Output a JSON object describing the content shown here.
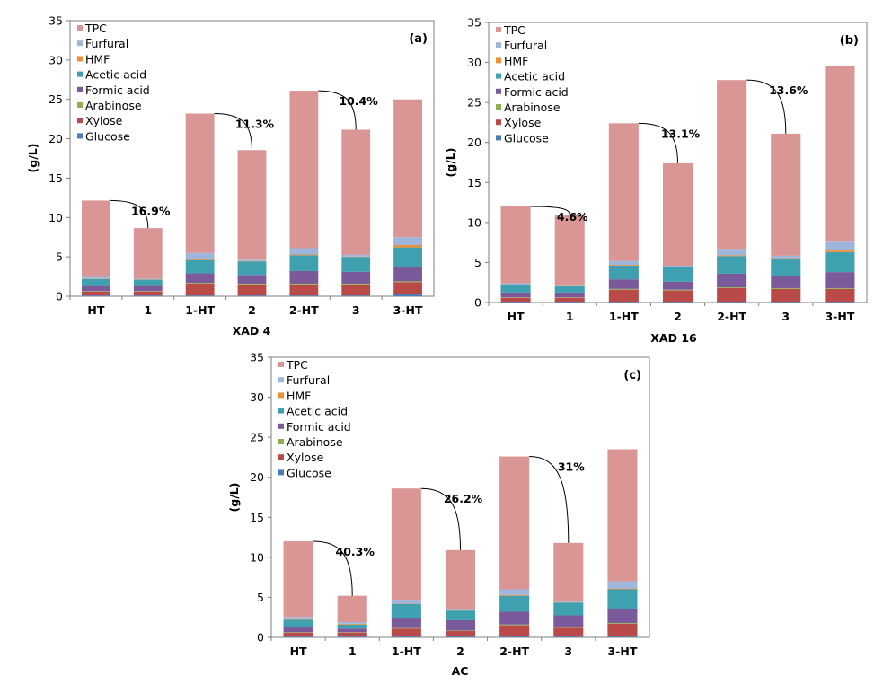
{
  "series_names": [
    "Glucose",
    "Xylose",
    "Arabinose",
    "Formic acid",
    "Acetic acid",
    "HMF",
    "Furfural",
    "TPC"
  ],
  "legend_order": [
    "TPC",
    "Furfural",
    "HMF",
    "Acetic acid",
    "Formic acid",
    "Arabinose",
    "Xylose",
    "Glucose"
  ],
  "colors": {
    "Glucose": "#4a7cb8",
    "Xylose": "#b94a48",
    "Arabinose": "#8fb04f",
    "Formic acid": "#7a5a9a",
    "Acetic acid": "#3fa0b0",
    "HMF": "#e8913a",
    "Furfural": "#9fb6dc",
    "TPC": "#d99694"
  },
  "chart_data": [
    {
      "type": "bar",
      "stacked": true,
      "panel_label": "(a)",
      "title": "",
      "xlabel": "XAD 4",
      "ylabel": "(g/L)",
      "ylim": [
        0,
        35
      ],
      "yticks": [
        0,
        5,
        10,
        15,
        20,
        25,
        30,
        35
      ],
      "categories": [
        "HT",
        "1",
        "1-HT",
        "2",
        "2-HT",
        "3",
        "3-HT"
      ],
      "series": [
        {
          "name": "Glucose",
          "values": [
            0.1,
            0.1,
            0.1,
            0.1,
            0.1,
            0.1,
            0.3
          ]
        },
        {
          "name": "Xylose",
          "values": [
            0.5,
            0.5,
            1.5,
            1.4,
            1.4,
            1.4,
            1.5
          ]
        },
        {
          "name": "Arabinose",
          "values": [
            0.05,
            0.05,
            0.1,
            0.1,
            0.1,
            0.1,
            0.1
          ]
        },
        {
          "name": "Formic acid",
          "values": [
            0.65,
            0.65,
            1.2,
            1.1,
            1.6,
            1.5,
            1.8
          ]
        },
        {
          "name": "Acetic acid",
          "values": [
            0.9,
            0.8,
            1.7,
            1.7,
            2.0,
            1.9,
            2.5
          ]
        },
        {
          "name": "HMF",
          "values": [
            0.05,
            0.05,
            0.1,
            0.05,
            0.1,
            0.05,
            0.3
          ]
        },
        {
          "name": "Furfural",
          "values": [
            0.2,
            0.1,
            0.8,
            0.2,
            0.8,
            0.2,
            1.0
          ]
        },
        {
          "name": "TPC",
          "values": [
            9.7,
            6.4,
            17.7,
            13.9,
            20.0,
            15.9,
            17.5
          ]
        }
      ],
      "totals": [
        12.15,
        8.65,
        23.2,
        18.55,
        26.1,
        21.15,
        25.0
      ],
      "annotations": [
        {
          "from": 0,
          "to": 1,
          "text": "16.9%"
        },
        {
          "from": 2,
          "to": 3,
          "text": "11.3%"
        },
        {
          "from": 4,
          "to": 5,
          "text": "10.4%"
        }
      ]
    },
    {
      "type": "bar",
      "stacked": true,
      "panel_label": "(b)",
      "title": "",
      "xlabel": "XAD 16",
      "ylabel": "(g/L)",
      "ylim": [
        0,
        35
      ],
      "yticks": [
        0,
        5,
        10,
        15,
        20,
        25,
        30,
        35
      ],
      "categories": [
        "HT",
        "1",
        "1-HT",
        "2",
        "2-HT",
        "3",
        "3-HT"
      ],
      "series": [
        {
          "name": "Glucose",
          "values": [
            0.1,
            0.1,
            0.1,
            0.1,
            0.1,
            0.1,
            0.1
          ]
        },
        {
          "name": "Xylose",
          "values": [
            0.5,
            0.5,
            1.5,
            1.4,
            1.7,
            1.6,
            1.6
          ]
        },
        {
          "name": "Arabinose",
          "values": [
            0.05,
            0.05,
            0.1,
            0.1,
            0.1,
            0.1,
            0.1
          ]
        },
        {
          "name": "Formic acid",
          "values": [
            0.6,
            0.6,
            1.2,
            1.0,
            1.7,
            1.5,
            2.0
          ]
        },
        {
          "name": "Acetic acid",
          "values": [
            0.9,
            0.8,
            1.7,
            1.8,
            2.2,
            2.2,
            2.5
          ]
        },
        {
          "name": "HMF",
          "values": [
            0.05,
            0.05,
            0.1,
            0.05,
            0.1,
            0.05,
            0.3
          ]
        },
        {
          "name": "Furfural",
          "values": [
            0.2,
            0.1,
            0.5,
            0.15,
            0.8,
            0.3,
            1.0
          ]
        },
        {
          "name": "TPC",
          "values": [
            9.6,
            8.8,
            17.2,
            12.8,
            21.1,
            15.25,
            22.0
          ]
        }
      ],
      "totals": [
        12.0,
        11.0,
        22.4,
        17.3,
        27.8,
        21.1,
        29.6
      ],
      "annotations": [
        {
          "from": 0,
          "to": 1,
          "text": "4.6%"
        },
        {
          "from": 2,
          "to": 3,
          "text": "13.1%"
        },
        {
          "from": 4,
          "to": 5,
          "text": "13.6%"
        }
      ]
    },
    {
      "type": "bar",
      "stacked": true,
      "panel_label": "(c)",
      "title": "",
      "xlabel": "AC",
      "ylabel": "(g/L)",
      "ylim": [
        0,
        35
      ],
      "yticks": [
        0,
        5,
        10,
        15,
        20,
        25,
        30,
        35
      ],
      "categories": [
        "HT",
        "1",
        "1-HT",
        "2",
        "2-HT",
        "3",
        "3-HT"
      ],
      "series": [
        {
          "name": "Glucose",
          "values": [
            0.1,
            0.1,
            0.1,
            0.1,
            0.1,
            0.1,
            0.1
          ]
        },
        {
          "name": "Xylose",
          "values": [
            0.5,
            0.5,
            1.0,
            0.7,
            1.4,
            1.1,
            1.6
          ]
        },
        {
          "name": "Arabinose",
          "values": [
            0.05,
            0.05,
            0.05,
            0.05,
            0.1,
            0.05,
            0.1
          ]
        },
        {
          "name": "Formic acid",
          "values": [
            0.65,
            0.45,
            1.2,
            1.3,
            1.6,
            1.5,
            1.7
          ]
        },
        {
          "name": "Acetic acid",
          "values": [
            0.9,
            0.5,
            1.8,
            1.2,
            2.0,
            1.6,
            2.5
          ]
        },
        {
          "name": "HMF",
          "values": [
            0.05,
            0.1,
            0.05,
            0.05,
            0.1,
            0.05,
            0.1
          ]
        },
        {
          "name": "Furfural",
          "values": [
            0.3,
            0.2,
            0.5,
            0.1,
            0.7,
            0.1,
            0.9
          ]
        },
        {
          "name": "TPC",
          "values": [
            9.45,
            3.3,
            13.9,
            7.4,
            16.6,
            7.3,
            16.5
          ]
        }
      ],
      "totals": [
        12.0,
        5.2,
        18.6,
        10.9,
        22.5,
        11.8,
        23.5
      ],
      "annotations": [
        {
          "from": 0,
          "to": 1,
          "text": "40.3%"
        },
        {
          "from": 2,
          "to": 3,
          "text": "26.2%"
        },
        {
          "from": 4,
          "to": 5,
          "text": "31%"
        }
      ]
    }
  ]
}
